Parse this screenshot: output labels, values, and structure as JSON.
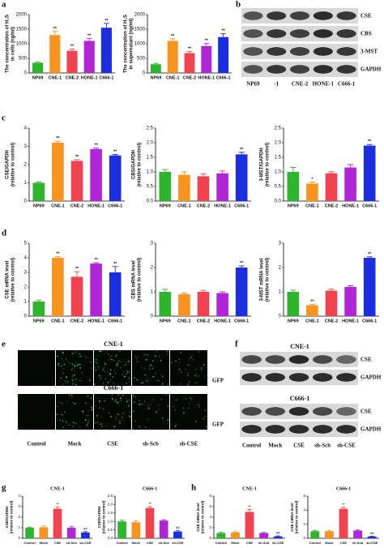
{
  "figure_labels": [
    "a",
    "b",
    "c",
    "d",
    "e",
    "f",
    "g",
    "h"
  ],
  "chart_data": [
    {
      "type": "bar",
      "y_label": [
        "The concentration of H₂S",
        "in cells (ng/ml)"
      ],
      "categories": [
        "NP69",
        "CNE-1",
        "CNE-2",
        "HONE-1",
        "C666-1"
      ],
      "values": [
        350,
        1300,
        760,
        1100,
        1550
      ],
      "errors": [
        30,
        120,
        60,
        80,
        150
      ],
      "annotations": [
        null,
        "**",
        "**",
        "**",
        "**"
      ],
      "colors": [
        "#2db52d",
        "#f7931e",
        "#f0434f",
        "#b026d6",
        "#1b2fe0"
      ],
      "ylim": [
        0,
        2000
      ],
      "yticks": [
        0,
        500,
        1000,
        1500,
        2000
      ]
    },
    {
      "type": "bar",
      "y_label": [
        "The concentration of H₂S",
        "in supernatant (ng/ml)"
      ],
      "categories": [
        "NP69",
        "CNE-1",
        "CNE-2",
        "HONE-1",
        "C666-1"
      ],
      "values": [
        300,
        1100,
        680,
        920,
        1230
      ],
      "errors": [
        30,
        70,
        50,
        90,
        120
      ],
      "annotations": [
        null,
        "**",
        "**",
        "**",
        "**"
      ],
      "colors": [
        "#2db52d",
        "#f7931e",
        "#f0434f",
        "#b026d6",
        "#1b2fe0"
      ],
      "ylim": [
        0,
        2000
      ],
      "yticks": [
        0,
        500,
        1000,
        1500,
        2000
      ]
    },
    {
      "type": "bar",
      "y_label": [
        "CSE/GAPDH",
        "(relative to control)"
      ],
      "categories": [
        "NP69",
        "CNE-1",
        "CNE-2",
        "HONE-1",
        "C666-1"
      ],
      "values": [
        1,
        3.2,
        2.2,
        2.85,
        2.5
      ],
      "errors": [
        0.05,
        0.08,
        0.07,
        0.05,
        0.05
      ],
      "annotations": [
        null,
        "**",
        "**",
        "**",
        "**"
      ],
      "colors": [
        "#2db52d",
        "#f7931e",
        "#f0434f",
        "#b026d6",
        "#1b2fe0"
      ],
      "ylim": [
        0,
        4
      ],
      "yticks": [
        0,
        1,
        2,
        3,
        4
      ]
    },
    {
      "type": "bar",
      "y_label": [
        "CBS/GAPDH",
        "(relative to control)"
      ],
      "categories": [
        "NP69",
        "CNE-1",
        "CNE-2",
        "HONE-1",
        "C666-1"
      ],
      "values": [
        1,
        0.9,
        0.85,
        0.95,
        1.6
      ],
      "errors": [
        0.08,
        0.1,
        0.08,
        0.08,
        0.07
      ],
      "annotations": [
        null,
        null,
        null,
        null,
        "**"
      ],
      "colors": [
        "#2db52d",
        "#f7931e",
        "#f0434f",
        "#b026d6",
        "#1b2fe0"
      ],
      "ylim": [
        0,
        2.5
      ],
      "yticks": [
        {
          "value": 0,
          "label": "0.0"
        },
        0.5,
        {
          "value": 1,
          "label": "1.0"
        },
        1.5,
        {
          "value": 2,
          "label": "2.0"
        },
        2.5
      ]
    },
    {
      "type": "bar",
      "y_label": [
        "3-MST/GAPDH",
        "(relative to control)"
      ],
      "categories": [
        "NP69",
        "CNE-1",
        "CNE-2",
        "HONE-1",
        "C666-1"
      ],
      "values": [
        1,
        0.6,
        0.95,
        1.15,
        1.9
      ],
      "errors": [
        0.15,
        0.05,
        0.05,
        0.1,
        0.04
      ],
      "annotations": [
        null,
        "*",
        null,
        null,
        "**"
      ],
      "colors": [
        "#2db52d",
        "#f7931e",
        "#f0434f",
        "#b026d6",
        "#1b2fe0"
      ],
      "ylim": [
        0,
        2.5
      ],
      "yticks": [
        {
          "value": 0,
          "label": "0.0"
        },
        0.5,
        {
          "value": 1,
          "label": "1.0"
        },
        1.5,
        {
          "value": 2,
          "label": "2.0"
        },
        2.5
      ]
    },
    {
      "type": "bar",
      "y_label": [
        "CSE mRNA level",
        "(relative to control)"
      ],
      "categories": [
        "NP69",
        "CNE-1",
        "CNE-2",
        "HONE-1",
        "C666-1"
      ],
      "values": [
        1,
        4,
        2.7,
        3.6,
        3.0
      ],
      "errors": [
        0.1,
        0.08,
        0.35,
        0.06,
        0.4
      ],
      "annotations": [
        null,
        "**",
        "**",
        "**",
        "**"
      ],
      "colors": [
        "#2db52d",
        "#f7931e",
        "#f0434f",
        "#b026d6",
        "#1b2fe0"
      ],
      "ylim": [
        0,
        5
      ],
      "yticks": [
        0,
        1,
        2,
        3,
        4,
        5
      ]
    },
    {
      "type": "bar",
      "y_label": [
        "CBS mRNA level",
        "(relative to control)"
      ],
      "categories": [
        "NP69",
        "CNE-1",
        "CNE-2",
        "HONE-1",
        "C666-1"
      ],
      "values": [
        1,
        0.9,
        1.0,
        0.95,
        2.0
      ],
      "errors": [
        0.1,
        0.05,
        0.06,
        0.05,
        0.07
      ],
      "annotations": [
        null,
        null,
        null,
        null,
        "**"
      ],
      "colors": [
        "#2db52d",
        "#f7931e",
        "#f0434f",
        "#b026d6",
        "#1b2fe0"
      ],
      "ylim": [
        0,
        3
      ],
      "yticks": [
        0,
        1,
        2,
        3
      ]
    },
    {
      "type": "bar",
      "y_label": [
        "3-MST mRNA level",
        "(relative to control)"
      ],
      "categories": [
        "NP69",
        "CNE-1",
        "CNE-2",
        "HONE-1",
        "C666-1"
      ],
      "values": [
        1,
        0.45,
        1.05,
        1.2,
        2.4
      ],
      "errors": [
        0.07,
        0.04,
        0.06,
        0.05,
        0.04
      ],
      "annotations": [
        null,
        "**",
        null,
        null,
        "**"
      ],
      "colors": [
        "#2db52d",
        "#f7931e",
        "#f0434f",
        "#b026d6",
        "#1b2fe0"
      ],
      "ylim": [
        0,
        3
      ],
      "yticks": [
        0,
        1,
        2,
        3
      ]
    },
    {
      "type": "bar",
      "title": "CNE-1",
      "y_label": [
        "CSE/GAPDH",
        "(relative to control)"
      ],
      "categories": [
        "Control",
        "Mock",
        "CSE",
        "sh-Scb",
        "sh-CSE"
      ],
      "values": [
        1,
        1.05,
        2.8,
        1.0,
        0.55
      ],
      "errors": [
        0.05,
        0.12,
        0.15,
        0.1,
        0.08
      ],
      "annotations": [
        null,
        null,
        "**",
        null,
        "##"
      ],
      "colors": [
        "#2db52d",
        "#f7931e",
        "#f0434f",
        "#b026d6",
        "#1b2fe0"
      ],
      "ylim": [
        0,
        4
      ],
      "yticks": [
        0,
        1,
        2,
        3,
        4
      ]
    },
    {
      "type": "bar",
      "title": "C666-1",
      "y_label": [
        "CSE/GAPDH",
        "(relative to control)"
      ],
      "categories": [
        "Control",
        "Mock",
        "CSE",
        "sh-Scb",
        "sh-CSE"
      ],
      "values": [
        1,
        0.95,
        1.8,
        1.05,
        0.4
      ],
      "errors": [
        0.07,
        0.08,
        0.08,
        0.05,
        0.05
      ],
      "annotations": [
        null,
        null,
        "**",
        null,
        "##"
      ],
      "colors": [
        "#2db52d",
        "#f7931e",
        "#f0434f",
        "#b026d6",
        "#1b2fe0"
      ],
      "ylim": [
        0,
        2.5
      ],
      "yticks": [
        {
          "value": 0,
          "label": "0.0"
        },
        0.5,
        {
          "value": 1,
          "label": "1.0"
        },
        1.5,
        {
          "value": 2,
          "label": "2.0"
        },
        2.5
      ]
    },
    {
      "type": "bar",
      "title": "CNE-1",
      "y_label": [
        "CSE mRNA level",
        "(relative to control)"
      ],
      "categories": [
        "Control",
        "Mock",
        "CSE",
        "sh-Scb",
        "sh-CSE"
      ],
      "values": [
        1,
        1.1,
        5,
        1.0,
        0.35
      ],
      "errors": [
        0.15,
        0.15,
        0.5,
        0.1,
        0.1
      ],
      "annotations": [
        null,
        null,
        "**",
        null,
        "##"
      ],
      "colors": [
        "#2db52d",
        "#f7931e",
        "#f0434f",
        "#b026d6",
        "#1b2fe0"
      ],
      "ylim": [
        0,
        8
      ],
      "yticks": [
        0,
        2,
        4,
        6,
        8
      ]
    },
    {
      "type": "bar",
      "title": "C666-1",
      "y_label": [
        "CSE mRNA level",
        "(relative to control)"
      ],
      "categories": [
        "Control",
        "Mock",
        "CSE",
        "sh-Scb",
        "sh-CSE"
      ],
      "values": [
        1,
        1,
        4.2,
        1.1,
        0.25
      ],
      "errors": [
        0.1,
        0.1,
        0.2,
        0.08,
        0.05
      ],
      "annotations": [
        null,
        null,
        "**",
        null,
        "##"
      ],
      "colors": [
        "#2db52d",
        "#f7931e",
        "#f0434f",
        "#b026d6",
        "#1b2fe0"
      ],
      "ylim": [
        0,
        6
      ],
      "yticks": [
        0,
        2,
        4,
        6
      ]
    }
  ],
  "blot_b": {
    "proteins": [
      "CSE",
      "CBS",
      "3-MST",
      "GAPDH"
    ],
    "lanes": [
      "NP69",
      "-1",
      "CNE-2",
      "HONE-1",
      "C666-1"
    ]
  },
  "images_e": {
    "rows": [
      "CNE-1",
      "C666-1"
    ],
    "channel": "GFP",
    "lanes": [
      "Control",
      "Mock",
      "CSE",
      "sh-Scb",
      "sh-CSE"
    ]
  },
  "blot_f": {
    "rows": [
      "CNE-1",
      "C666-1"
    ],
    "proteins": [
      "CSE",
      "GAPDH"
    ],
    "lanes": [
      "Control",
      "Mock",
      "CSE",
      "sh-Scb",
      "sh-CSE"
    ]
  }
}
